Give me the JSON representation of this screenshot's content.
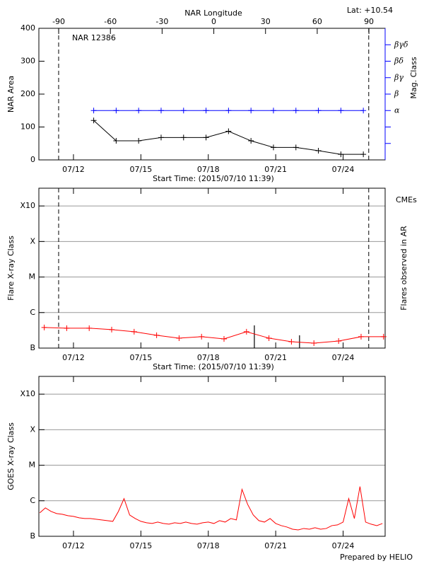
{
  "chart_data": [
    {
      "type": "line",
      "title": "NAR 12386",
      "annotation": "Lat: +10.54",
      "x2label": "NAR Longitude",
      "xlabel": "Start Time: (2015/07/10 11:39)",
      "ylabel": "NAR Area",
      "y2label": "Mag. Class",
      "y2color": "#0000ff",
      "marker": "+",
      "xlim": [
        0.46,
        15.87
      ],
      "xticks": [
        {
          "value": 2,
          "label": "07/12"
        },
        {
          "value": 5,
          "label": "07/15"
        },
        {
          "value": 8,
          "label": "07/18"
        },
        {
          "value": 11,
          "label": "07/21"
        },
        {
          "value": 14,
          "label": "07/24"
        }
      ],
      "x2lim": [
        -101.5,
        99.4
      ],
      "x2ticks": [
        -90,
        -60,
        -30,
        0,
        30,
        60,
        90
      ],
      "ylim": [
        0,
        400
      ],
      "yticks": [
        0,
        100,
        200,
        300,
        400
      ],
      "y2lim": [
        0,
        8
      ],
      "y2ticks": [
        {
          "value": 3,
          "label": "α"
        },
        {
          "value": 4,
          "label": "β"
        },
        {
          "value": 5,
          "label": "βγ"
        },
        {
          "value": 6,
          "label": "βδ"
        },
        {
          "value": 7,
          "label": "βγδ"
        }
      ],
      "y2minorticks": [
        1,
        2
      ],
      "vlines": [
        1.34,
        15.14
      ],
      "x": [
        2.9,
        3.9,
        4.9,
        5.9,
        6.9,
        7.9,
        8.9,
        9.9,
        10.9,
        11.9,
        12.9,
        13.9,
        14.9
      ],
      "series": [
        {
          "color": "#000000",
          "values": [
            120,
            58,
            58,
            68,
            68,
            68,
            87,
            58,
            38,
            38,
            28,
            17,
            17
          ]
        },
        {
          "color": "#0000ff",
          "axis": "y2",
          "values": [
            3,
            3,
            3,
            3,
            3,
            3,
            3,
            3,
            3,
            3,
            3,
            3,
            3
          ]
        }
      ]
    },
    {
      "type": "line",
      "xlabel": "Start Time: (2015/07/10 11:39)",
      "ylabel": "Flare X-ray Class",
      "y2label": "Flares observed in AR",
      "legend_text": "CMEs",
      "legend_color": "#ff0000",
      "marker": "+",
      "grid": true,
      "xlim": [
        0.46,
        15.87
      ],
      "xticks": [
        {
          "value": 2,
          "label": "07/12"
        },
        {
          "value": 5,
          "label": "07/15"
        },
        {
          "value": 8,
          "label": "07/18"
        },
        {
          "value": 11,
          "label": "07/21"
        },
        {
          "value": 14,
          "label": "07/24"
        }
      ],
      "ylim": [
        0,
        4.5
      ],
      "yticks": [
        {
          "value": 0,
          "label": "B"
        },
        {
          "value": 1,
          "label": "C"
        },
        {
          "value": 2,
          "label": "M"
        },
        {
          "value": 3,
          "label": "X"
        },
        {
          "value": 4,
          "label": "X10"
        }
      ],
      "vlines": [
        1.34,
        15.14
      ],
      "events": {
        "x": [
          10.05,
          12.06
        ],
        "values": [
          0.64,
          0.36
        ]
      },
      "x": [
        0.7,
        1.7,
        2.7,
        3.7,
        4.7,
        5.7,
        6.7,
        7.7,
        8.7,
        9.7,
        10.7,
        11.7,
        12.7,
        13.8,
        14.8,
        15.8
      ],
      "series": [
        {
          "color": "#ff0000",
          "values": [
            0.58,
            0.56,
            0.56,
            0.52,
            0.46,
            0.36,
            0.28,
            0.32,
            0.26,
            0.46,
            0.28,
            0.18,
            0.14,
            0.2,
            0.32,
            0.32
          ]
        }
      ]
    },
    {
      "type": "line",
      "ylabel": "GOES X-ray Class",
      "grid": true,
      "credit": "Prepared by HELIO",
      "xlim": [
        0.46,
        15.87
      ],
      "xticks": [
        {
          "value": 2,
          "label": "07/12"
        },
        {
          "value": 5,
          "label": "07/15"
        },
        {
          "value": 8,
          "label": "07/18"
        },
        {
          "value": 11,
          "label": "07/21"
        },
        {
          "value": 14,
          "label": "07/24"
        }
      ],
      "ylim": [
        0,
        4.5
      ],
      "yticks": [
        {
          "value": 0,
          "label": "B"
        },
        {
          "value": 1,
          "label": "C"
        },
        {
          "value": 2,
          "label": "M"
        },
        {
          "value": 3,
          "label": "X"
        },
        {
          "value": 4,
          "label": "X10"
        }
      ],
      "x": [
        0.5,
        0.75,
        1.0,
        1.25,
        1.5,
        1.75,
        2.0,
        2.25,
        2.5,
        2.75,
        3.0,
        3.25,
        3.5,
        3.75,
        4.0,
        4.25,
        4.5,
        4.75,
        5.0,
        5.25,
        5.5,
        5.75,
        6.0,
        6.25,
        6.5,
        6.75,
        7.0,
        7.25,
        7.5,
        7.75,
        8.0,
        8.25,
        8.5,
        8.75,
        9.0,
        9.25,
        9.5,
        9.75,
        10.0,
        10.25,
        10.5,
        10.75,
        11.0,
        11.25,
        11.5,
        11.75,
        12.0,
        12.25,
        12.5,
        12.75,
        13.0,
        13.25,
        13.5,
        13.75,
        14.0,
        14.25,
        14.5,
        14.75,
        15.0,
        15.25,
        15.5,
        15.75
      ],
      "series": [
        {
          "color": "#ff0000",
          "values": [
            0.66,
            0.8,
            0.7,
            0.64,
            0.62,
            0.58,
            0.56,
            0.52,
            0.5,
            0.5,
            0.48,
            0.46,
            0.44,
            0.42,
            0.7,
            1.06,
            0.6,
            0.5,
            0.42,
            0.38,
            0.36,
            0.4,
            0.36,
            0.34,
            0.38,
            0.36,
            0.4,
            0.36,
            0.34,
            0.38,
            0.4,
            0.36,
            0.44,
            0.4,
            0.5,
            0.46,
            1.32,
            0.9,
            0.6,
            0.44,
            0.4,
            0.5,
            0.36,
            0.3,
            0.26,
            0.2,
            0.18,
            0.22,
            0.2,
            0.24,
            0.2,
            0.22,
            0.3,
            0.32,
            0.4,
            1.06,
            0.5,
            1.4,
            0.4,
            0.34,
            0.3,
            0.36
          ]
        }
      ]
    }
  ]
}
